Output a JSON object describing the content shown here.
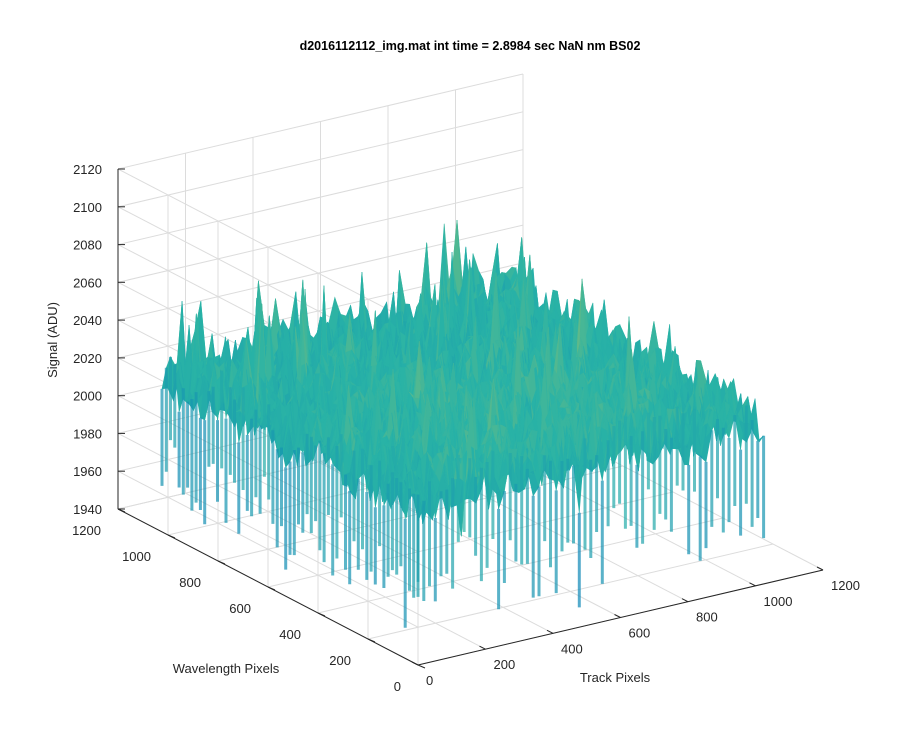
{
  "chart_data": {
    "type": "surface",
    "title": "d2016112112_img.mat int time = 2.8984 sec  NaN nm BS02",
    "xlabel": "Track Pixels",
    "ylabel": "Wavelength Pixels",
    "zlabel": "Signal (ADU)",
    "xlim": [
      0,
      1200
    ],
    "ylim": [
      0,
      1200
    ],
    "zlim": [
      1940,
      2120
    ],
    "xticks": [
      "0",
      "200",
      "400",
      "600",
      "800",
      "1000",
      "1200"
    ],
    "yticks": [
      "0",
      "200",
      "400",
      "600",
      "800",
      "1000",
      "1200"
    ],
    "zticks": [
      "1940",
      "1960",
      "1980",
      "2000",
      "2020",
      "2040",
      "2060",
      "2080",
      "2100",
      "2120"
    ],
    "data_extent": {
      "x": [
        0,
        1024
      ],
      "y": [
        0,
        1024
      ]
    },
    "signal_summary": {
      "approx_mean": 2025,
      "approx_min": 1950,
      "approx_max": 2110
    },
    "grid": true,
    "colormap": "parula",
    "colors": {
      "low": "#0072BD",
      "mid": "#29B3A6",
      "high": "#D8C84A"
    }
  }
}
